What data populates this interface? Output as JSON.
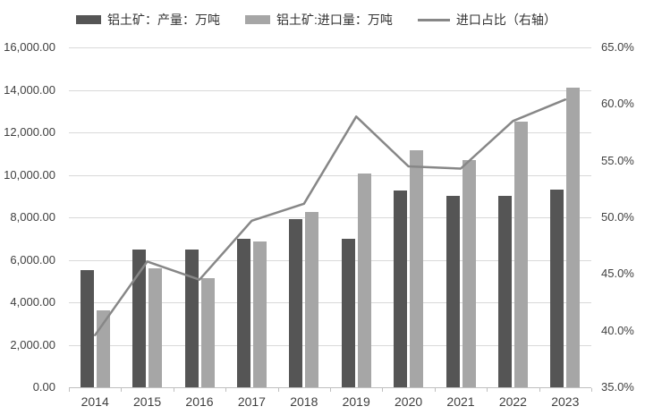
{
  "legend": {
    "production": "铝土矿：产量：万吨",
    "import": "铝土矿:进口量：万吨",
    "share": "进口占比（右轴）"
  },
  "colors": {
    "production_bar": "#555555",
    "import_bar": "#a6a6a6",
    "line": "#878787",
    "gridline": "#d9d9d9",
    "axis": "#bfbfbf",
    "text": "#404040"
  },
  "chart_data": {
    "type": "bar",
    "subtype": "bar-line-combo",
    "title": "",
    "categories": [
      "2014",
      "2015",
      "2016",
      "2017",
      "2018",
      "2019",
      "2020",
      "2021",
      "2022",
      "2023"
    ],
    "series": [
      {
        "name": "铝土矿：产量：万吨",
        "type": "bar",
        "axis": "left",
        "values": [
          5500,
          6500,
          6500,
          7000,
          7900,
          7000,
          9250,
          9000,
          9000,
          9300
        ]
      },
      {
        "name": "铝土矿:进口量：万吨",
        "type": "bar",
        "axis": "left",
        "values": [
          3630,
          5580,
          5150,
          6850,
          8250,
          10050,
          11150,
          10700,
          12500,
          14100
        ]
      },
      {
        "name": "进口占比（右轴）",
        "type": "line",
        "axis": "right",
        "values": [
          39.6,
          46.1,
          44.5,
          49.7,
          51.2,
          58.9,
          54.5,
          54.3,
          58.5,
          60.4
        ]
      }
    ],
    "left_axis": {
      "min": 0,
      "max": 16000,
      "step": 2000,
      "tick_labels": [
        "16,000.00",
        "14,000.00",
        "12,000.00",
        "10,000.00",
        "8,000.00",
        "6,000.00",
        "4,000.00",
        "2,000.00",
        "0.00"
      ]
    },
    "right_axis": {
      "min": 35,
      "max": 65,
      "step": 5,
      "tick_labels": [
        "65.0%",
        "60.0%",
        "55.0%",
        "50.0%",
        "45.0%",
        "40.0%",
        "35.0%"
      ]
    },
    "grid": "horizontal",
    "legend_position": "top"
  }
}
